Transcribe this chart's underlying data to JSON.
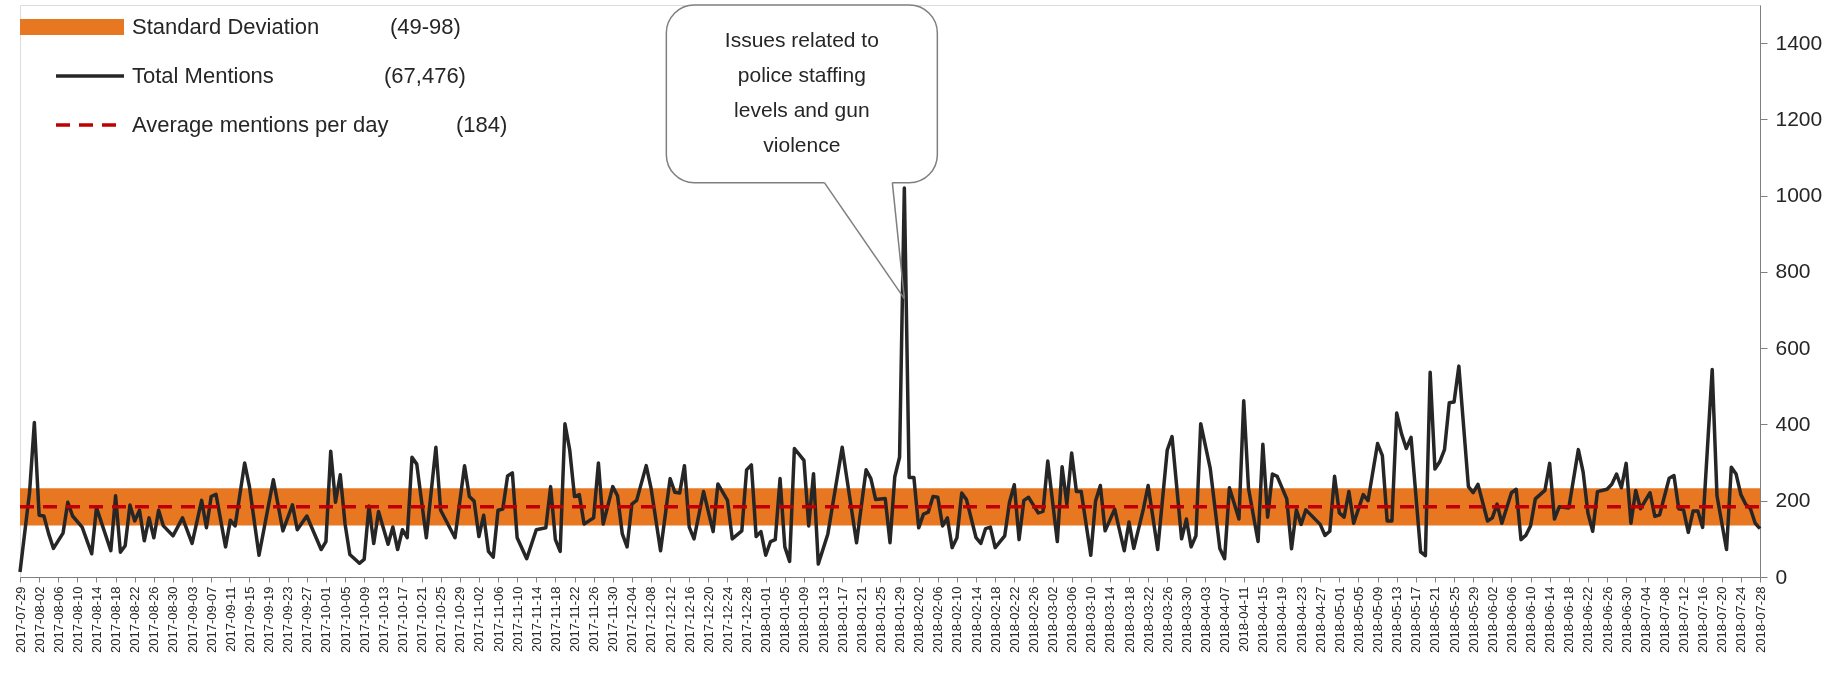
{
  "chart_data": {
    "type": "line",
    "x": [
      "2017-07-29",
      "2017-07-31",
      "2017-08-01",
      "2017-08-02",
      "2017-08-03",
      "2017-08-04",
      "2017-08-05",
      "2017-08-07",
      "2017-08-08",
      "2017-08-09",
      "2017-08-11",
      "2017-08-13",
      "2017-08-14",
      "2017-08-17",
      "2017-08-18",
      "2017-08-19",
      "2017-08-20",
      "2017-08-21",
      "2017-08-22",
      "2017-08-23",
      "2017-08-24",
      "2017-08-25",
      "2017-08-26",
      "2017-08-27",
      "2017-08-28",
      "2017-08-30",
      "2017-09-01",
      "2017-09-03",
      "2017-09-05",
      "2017-09-06",
      "2017-09-07",
      "2017-09-08",
      "2017-09-10",
      "2017-09-11",
      "2017-09-12",
      "2017-09-14",
      "2017-09-15",
      "2017-09-17",
      "2017-09-20",
      "2017-09-22",
      "2017-09-24",
      "2017-09-25",
      "2017-09-27",
      "2017-09-30",
      "2017-10-01",
      "2017-10-02",
      "2017-10-03",
      "2017-10-04",
      "2017-10-05",
      "2017-10-06",
      "2017-10-08",
      "2017-10-09",
      "2017-10-10",
      "2017-10-11",
      "2017-10-12",
      "2017-10-14",
      "2017-10-15",
      "2017-10-16",
      "2017-10-17",
      "2017-10-18",
      "2017-10-19",
      "2017-10-20",
      "2017-10-22",
      "2017-10-24",
      "2017-10-25",
      "2017-10-28",
      "2017-10-30",
      "2017-10-31",
      "2017-11-01",
      "2017-11-02",
      "2017-11-03",
      "2017-11-04",
      "2017-11-05",
      "2017-11-06",
      "2017-11-07",
      "2017-11-08",
      "2017-11-09",
      "2017-11-10",
      "2017-11-12",
      "2017-11-14",
      "2017-11-16",
      "2017-11-17",
      "2017-11-18",
      "2017-11-19",
      "2017-11-20",
      "2017-11-21",
      "2017-11-22",
      "2017-11-23",
      "2017-11-24",
      "2017-11-26",
      "2017-11-27",
      "2017-11-28",
      "2017-11-30",
      "2017-12-01",
      "2017-12-02",
      "2017-12-03",
      "2017-12-04",
      "2017-12-05",
      "2017-12-07",
      "2017-12-08",
      "2017-12-10",
      "2017-12-12",
      "2017-12-13",
      "2017-12-14",
      "2017-12-15",
      "2017-12-16",
      "2017-12-17",
      "2017-12-19",
      "2017-12-21",
      "2017-12-22",
      "2017-12-24",
      "2017-12-25",
      "2017-12-27",
      "2017-12-28",
      "2017-12-29",
      "2017-12-30",
      "2017-12-31",
      "2018-01-01",
      "2018-01-02",
      "2018-01-03",
      "2018-01-04",
      "2018-01-05",
      "2018-01-06",
      "2018-01-07",
      "2018-01-09",
      "2018-01-10",
      "2018-01-11",
      "2018-01-12",
      "2018-01-14",
      "2018-01-17",
      "2018-01-20",
      "2018-01-22",
      "2018-01-23",
      "2018-01-24",
      "2018-01-26",
      "2018-01-27",
      "2018-01-28",
      "2018-01-29",
      "2018-01-30",
      "2018-01-31",
      "2018-02-01",
      "2018-02-02",
      "2018-02-03",
      "2018-02-04",
      "2018-02-05",
      "2018-02-06",
      "2018-02-07",
      "2018-02-08",
      "2018-02-09",
      "2018-02-10",
      "2018-02-11",
      "2018-02-12",
      "2018-02-14",
      "2018-02-15",
      "2018-02-16",
      "2018-02-17",
      "2018-02-18",
      "2018-02-20",
      "2018-02-21",
      "2018-02-22",
      "2018-02-23",
      "2018-02-24",
      "2018-02-25",
      "2018-02-27",
      "2018-02-28",
      "2018-03-01",
      "2018-03-03",
      "2018-03-04",
      "2018-03-05",
      "2018-03-06",
      "2018-03-07",
      "2018-03-08",
      "2018-03-10",
      "2018-03-11",
      "2018-03-12",
      "2018-03-13",
      "2018-03-15",
      "2018-03-17",
      "2018-03-18",
      "2018-03-19",
      "2018-03-21",
      "2018-03-22",
      "2018-03-24",
      "2018-03-26",
      "2018-03-27",
      "2018-03-29",
      "2018-03-30",
      "2018-03-31",
      "2018-04-01",
      "2018-04-02",
      "2018-04-04",
      "2018-04-06",
      "2018-04-07",
      "2018-04-08",
      "2018-04-10",
      "2018-04-11",
      "2018-04-12",
      "2018-04-14",
      "2018-04-15",
      "2018-04-16",
      "2018-04-17",
      "2018-04-18",
      "2018-04-20",
      "2018-04-21",
      "2018-04-22",
      "2018-04-23",
      "2018-04-24",
      "2018-04-27",
      "2018-04-28",
      "2018-04-29",
      "2018-04-30",
      "2018-05-01",
      "2018-05-02",
      "2018-05-03",
      "2018-05-04",
      "2018-05-06",
      "2018-05-07",
      "2018-05-09",
      "2018-05-10",
      "2018-05-11",
      "2018-05-12",
      "2018-05-13",
      "2018-05-14",
      "2018-05-15",
      "2018-05-16",
      "2018-05-18",
      "2018-05-19",
      "2018-05-20",
      "2018-05-21",
      "2018-05-22",
      "2018-05-23",
      "2018-05-24",
      "2018-05-25",
      "2018-05-26",
      "2018-05-28",
      "2018-05-29",
      "2018-05-30",
      "2018-06-01",
      "2018-06-02",
      "2018-06-03",
      "2018-06-04",
      "2018-06-06",
      "2018-06-07",
      "2018-06-08",
      "2018-06-09",
      "2018-06-10",
      "2018-06-11",
      "2018-06-13",
      "2018-06-14",
      "2018-06-15",
      "2018-06-16",
      "2018-06-18",
      "2018-06-20",
      "2018-06-21",
      "2018-06-22",
      "2018-06-23",
      "2018-06-24",
      "2018-06-26",
      "2018-06-27",
      "2018-06-28",
      "2018-06-29",
      "2018-06-30",
      "2018-07-01",
      "2018-07-02",
      "2018-07-03",
      "2018-07-05",
      "2018-07-06",
      "2018-07-07",
      "2018-07-09",
      "2018-07-10",
      "2018-07-11",
      "2018-07-12",
      "2018-07-13",
      "2018-07-14",
      "2018-07-15",
      "2018-07-16",
      "2018-07-18",
      "2018-07-19",
      "2018-07-21",
      "2018-07-22",
      "2018-07-23",
      "2018-07-24",
      "2018-07-25",
      "2018-07-26",
      "2018-07-27",
      "2018-07-28"
    ],
    "series": [
      {
        "name": "Total Mentions",
        "color": "#262626",
        "line_style": "solid",
        "values": [
          13,
          222,
          405,
          162,
          160,
          113,
          75,
          115,
          196,
          160,
          131,
          61,
          182,
          69,
          213,
          65,
          82,
          189,
          147,
          175,
          95,
          155,
          103,
          175,
          134,
          108,
          155,
          88,
          201,
          129,
          211,
          217,
          79,
          149,
          134,
          299,
          237,
          57,
          255,
          121,
          189,
          124,
          160,
          72,
          93,
          330,
          196,
          268,
          139,
          59,
          36,
          46,
          186,
          88,
          172,
          86,
          131,
          72,
          124,
          103,
          314,
          296,
          103,
          340,
          175,
          103,
          292,
          211,
          199,
          106,
          162,
          67,
          52,
          175,
          178,
          265,
          273,
          103,
          48,
          124,
          129,
          237,
          98,
          67,
          402,
          333,
          211,
          216,
          139,
          155,
          299,
          139,
          237,
          213,
          113,
          79,
          191,
          201,
          292,
          234,
          69,
          258,
          222,
          220,
          292,
          131,
          100,
          224,
          119,
          244,
          201,
          100,
          121,
          281,
          294,
          106,
          119,
          57,
          93,
          98,
          258,
          79,
          41,
          337,
          306,
          134,
          271,
          34,
          113,
          340,
          90,
          281,
          258,
          203,
          206,
          90,
          263,
          314,
          1020,
          261,
          261,
          129,
          165,
          170,
          211,
          209,
          134,
          155,
          77,
          103,
          220,
          203,
          103,
          88,
          127,
          131,
          77,
          108,
          196,
          242,
          98,
          201,
          209,
          168,
          172,
          304,
          93,
          289,
          191,
          325,
          224,
          224,
          57,
          199,
          240,
          121,
          178,
          69,
          144,
          75,
          178,
          240,
          72,
          333,
          368,
          100,
          152,
          79,
          108,
          402,
          284,
          75,
          48,
          234,
          152,
          462,
          232,
          93,
          348,
          157,
          270,
          264,
          205,
          74,
          176,
          138,
          176,
          138,
          109,
          120,
          264,
          168,
          157,
          224,
          141,
          216,
          200,
          350,
          318,
          147,
          147,
          430,
          376,
          337,
          366,
          66,
          56,
          537,
          283,
          302,
          334,
          457,
          459,
          553,
          237,
          221,
          243,
          147,
          155,
          191,
          141,
          221,
          230,
          98,
          109,
          134,
          205,
          227,
          298,
          152,
          184,
          181,
          334,
          275,
          168,
          120,
          224,
          230,
          243,
          270,
          234,
          298,
          141,
          227,
          179,
          221,
          159,
          163,
          259,
          266,
          179,
          176,
          117,
          173,
          173,
          130,
          544,
          213,
          72,
          288,
          270,
          216,
          191,
          179,
          141,
          127
        ]
      }
    ],
    "xlim": [
      "2017-07-29",
      "2018-07-28"
    ],
    "xticks": [
      "2017-07-29",
      "2017-08-02",
      "2017-08-06",
      "2017-08-10",
      "2017-08-14",
      "2017-08-18",
      "2017-08-22",
      "2017-08-26",
      "2017-08-30",
      "2017-09-03",
      "2017-09-07",
      "2017-09-11",
      "2017-09-15",
      "2017-09-19",
      "2017-09-23",
      "2017-09-27",
      "2017-10-01",
      "2017-10-05",
      "2017-10-09",
      "2017-10-13",
      "2017-10-17",
      "2017-10-21",
      "2017-10-25",
      "2017-10-29",
      "2017-11-02",
      "2017-11-06",
      "2017-11-10",
      "2017-11-14",
      "2017-11-18",
      "2017-11-22",
      "2017-11-26",
      "2017-11-30",
      "2017-12-04",
      "2017-12-08",
      "2017-12-12",
      "2017-12-16",
      "2017-12-20",
      "2017-12-24",
      "2017-12-28",
      "2018-01-01",
      "2018-01-05",
      "2018-01-09",
      "2018-01-13",
      "2018-01-17",
      "2018-01-21",
      "2018-01-25",
      "2018-01-29",
      "2018-02-02",
      "2018-02-06",
      "2018-02-10",
      "2018-02-14",
      "2018-02-18",
      "2018-02-22",
      "2018-02-26",
      "2018-03-02",
      "2018-03-06",
      "2018-03-10",
      "2018-03-14",
      "2018-03-18",
      "2018-03-22",
      "2018-03-26",
      "2018-03-30",
      "2018-04-03",
      "2018-04-07",
      "2018-04-11",
      "2018-04-15",
      "2018-04-19",
      "2018-04-23",
      "2018-04-27",
      "2018-05-01",
      "2018-05-05",
      "2018-05-09",
      "2018-05-13",
      "2018-05-17",
      "2018-05-21",
      "2018-05-25",
      "2018-05-29",
      "2018-06-02",
      "2018-06-06",
      "2018-06-10",
      "2018-06-14",
      "2018-06-18",
      "2018-06-22",
      "2018-06-26",
      "2018-06-30",
      "2018-07-04",
      "2018-07-08",
      "2018-07-12",
      "2018-07-16",
      "2018-07-20",
      "2018-07-24",
      "2018-07-28"
    ],
    "ylim": [
      0,
      1500
    ],
    "yticks": [
      0,
      200,
      400,
      600,
      800,
      1000,
      1200,
      1400
    ],
    "bands": [
      {
        "axis": "y",
        "from": 135,
        "to": 233,
        "label": "Standard Deviation",
        "color": "#e87722"
      }
    ],
    "ref_lines": [
      {
        "axis": "y",
        "value": 184,
        "label": "Average mentions per day",
        "color": "#c00000",
        "line_style": "dashed"
      }
    ],
    "annotations": [
      {
        "text": "Issues related to police staffing levels and gun violence",
        "x": "2018-01-30",
        "y": 730
      },
      "(49-98)",
      "(67,476)",
      "(184)"
    ],
    "grid": false,
    "legend": "top left",
    "marker": "none"
  }
}
